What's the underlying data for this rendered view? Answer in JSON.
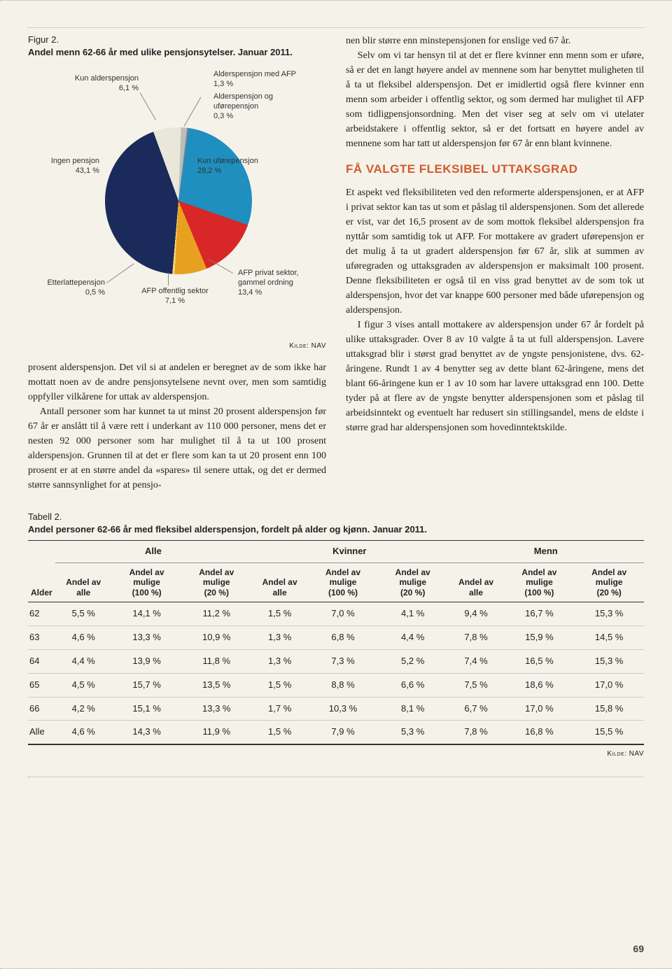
{
  "figure": {
    "title_line1": "Figur 2.",
    "title_bold": "Andel menn 62-66 år med ulike pensjonsytelser. Januar 2011.",
    "source": "Kilde: NAV",
    "type": "pie",
    "slices": [
      {
        "label": "Kun alderspensjon",
        "pct": "6,1 %",
        "value": 6.1,
        "color": "#e9e6da"
      },
      {
        "label": "Alderspensjon med AFP",
        "pct": "1,3 %",
        "value": 1.3,
        "color": "#bdbdbd"
      },
      {
        "label": "Alderspensjon og uførepensjon",
        "pct": "0,3 %",
        "value": 0.3,
        "color": "#8a8a8a"
      },
      {
        "label": "Kun uførepensjon",
        "pct": "28,2 %",
        "value": 28.2,
        "color": "#1f8fbf"
      },
      {
        "label": "AFP privat sektor, gammel ordning",
        "pct": "13,4 %",
        "value": 13.4,
        "color": "#d92626"
      },
      {
        "label": "AFP offentlig sektor",
        "pct": "7,1 %",
        "value": 7.1,
        "color": "#e8a01f"
      },
      {
        "label": "Etterlattepensjon",
        "pct": "0,5 %",
        "value": 0.5,
        "color": "#f3d779"
      },
      {
        "label": "Ingen pensjon",
        "pct": "43,1 %",
        "value": 43.1,
        "color": "#1a2a5a"
      }
    ],
    "background": "#f5f2ea"
  },
  "left_paragraphs": [
    "prosent alderspensjon. Det vil si at andelen er beregnet av de som ikke har mottatt noen av de andre pensjonsytelsene nevnt over, men som samtidig oppfyller vilkårene for uttak av alderspensjon.",
    "Antall personer som har kunnet ta ut minst 20 prosent alderspensjon før 67 år er anslått til å være rett i underkant av 110 000 personer, mens det er nesten 92 000 personer som har mulighet til å ta ut 100 prosent alderspensjon. Grunnen til at det er flere som kan ta ut 20 prosent enn 100 prosent er at en større andel da «spares» til senere uttak, og det er dermed større sannsynlighet for at pensjo-"
  ],
  "right_paragraphs_top": [
    "nen blir større enn minstepensjonen for enslige ved 67 år.",
    "Selv om vi tar hensyn til at det er flere kvinner enn menn som er uføre, så er det en langt høyere andel av mennene som har benyttet muligheten til å ta ut fleksibel alderspensjon. Det er imidlertid også flere kvinner enn menn som arbeider i offentlig sektor, og som dermed har mulighet til AFP som tidligpensjonsordning. Men det viser seg at selv om vi utelater arbeidstakere i offentlig sektor, så er det fortsatt en høyere andel av mennene som har tatt ut alderspensjon før 67 år enn blant kvinnene."
  ],
  "section_heading": "FÅ VALGTE FLEKSIBEL UTTAKSGRAD",
  "right_paragraphs_bottom": [
    "Et aspekt ved fleksibiliteten ved den reformerte alderspensjonen, er at AFP i privat sektor kan tas ut som et påslag til alderspensjonen. Som det allerede er vist, var det 16,5 prosent av de som mottok fleksibel alderspensjon fra nyttår som samtidig tok ut AFP. For mottakere av gradert uførepensjon er det mulig å ta ut gradert alderspensjon før 67 år, slik at summen av uføregraden og uttaksgraden av alderspensjon er maksimalt 100 prosent. Denne fleksibiliteten er også til en viss grad benyttet av de som tok ut alderspensjon, hvor det var knappe 600 personer med både uførepensjon og alderspensjon.",
    "I figur 3 vises antall mottakere av alderspensjon under 67 år fordelt på ulike uttaksgrader. Over 8 av 10 valgte å ta ut full alderspensjon. Lavere uttaksgrad blir i størst grad benyttet av de yngste pensjonistene, dvs. 62-åringene. Rundt 1 av 4 benytter seg av dette blant 62-åringene, mens det blant 66-åringene kun er 1 av 10 som har lavere uttaksgrad enn 100. Dette tyder på at flere av de yngste benytter alderspensjonen som et påslag til arbeidsinntekt og eventuelt har redusert sin stillingsandel, mens de eldste i større grad har alderspensjonen som hovedinntektskilde."
  ],
  "table": {
    "title_line1": "Tabell 2.",
    "title_bold": "Andel personer 62-66 år med fleksibel alderspensjon, fordelt på alder og kjønn.  Januar 2011.",
    "source": "Kilde: NAV",
    "groups": [
      "",
      "Alle",
      "Kvinner",
      "Menn"
    ],
    "subheaders": [
      "Alder",
      "Andel av alle",
      "Andel av mulige (100 %)",
      "Andel av mulige (20 %)",
      "Andel av alle",
      "Andel av mulige (100 %)",
      "Andel av mulige (20 %)",
      "Andel av alle",
      "Andel av mulige (100 %)",
      "Andel av mulige (20 %)"
    ],
    "rows": [
      [
        "62",
        "5,5 %",
        "14,1 %",
        "11,2 %",
        "1,5 %",
        "7,0 %",
        "4,1 %",
        "9,4 %",
        "16,7 %",
        "15,3 %"
      ],
      [
        "63",
        "4,6 %",
        "13,3 %",
        "10,9 %",
        "1,3 %",
        "6,8 %",
        "4,4 %",
        "7,8 %",
        "15,9 %",
        "14,5 %"
      ],
      [
        "64",
        "4,4 %",
        "13,9 %",
        "11,8 %",
        "1,3 %",
        "7,3 %",
        "5,2 %",
        "7,4 %",
        "16,5 %",
        "15,3 %"
      ],
      [
        "65",
        "4,5 %",
        "15,7 %",
        "13,5 %",
        "1,5 %",
        "8,8 %",
        "6,6 %",
        "7,5 %",
        "18,6 %",
        "17,0 %"
      ],
      [
        "66",
        "4,2 %",
        "15,1 %",
        "13,3 %",
        "1,7 %",
        "10,3 %",
        "8,1 %",
        "6,7 %",
        "17,0 %",
        "15,8 %"
      ]
    ],
    "total_row": [
      "Alle",
      "4,6 %",
      "14,3 %",
      "11,9 %",
      "1,5 %",
      "7,9 %",
      "5,3 %",
      "7,8 %",
      "16,8 %",
      "15,5 %"
    ]
  },
  "page_number": "69"
}
